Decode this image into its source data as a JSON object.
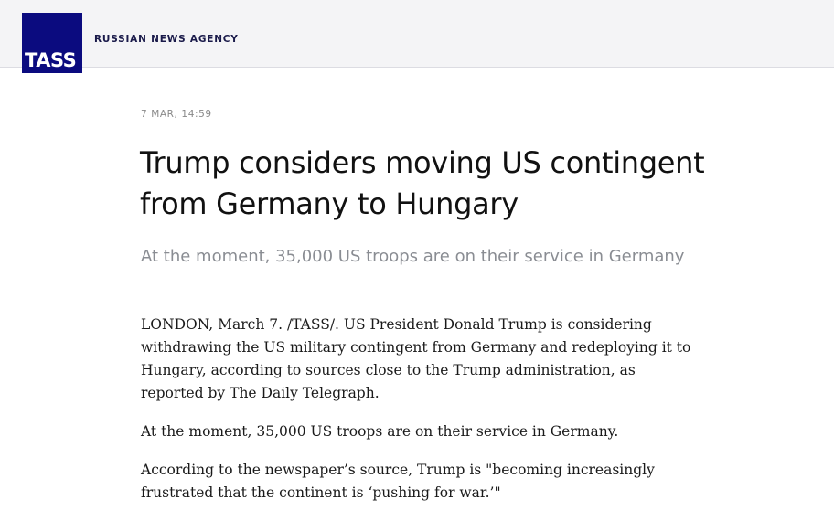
{
  "header": {
    "logo_text": "TASS",
    "agency": "RUSSIAN NEWS AGENCY",
    "brand_color": "#0b0b7f"
  },
  "article": {
    "date": "7 MAR, 14:59",
    "title": "Trump considers moving US contingent from Germany to Hungary",
    "subtitle": "At the moment, 35,000 US troops are on their service in Germany",
    "p1_text": "LONDON, March 7. /TASS/. US President Donald Trump is considering withdrawing the US military contingent from Germany and redeploying it to Hungary, according to sources close to the Trump administration, as reported by ",
    "p1_link": "The Daily Telegraph",
    "p1_end": ".",
    "p2": "At the moment, 35,000 US troops are on their service in Germany.",
    "p3": "According to the newspaper’s source, Trump is \"becoming increasingly frustrated that the continent is ‘pushing for war.’\""
  }
}
